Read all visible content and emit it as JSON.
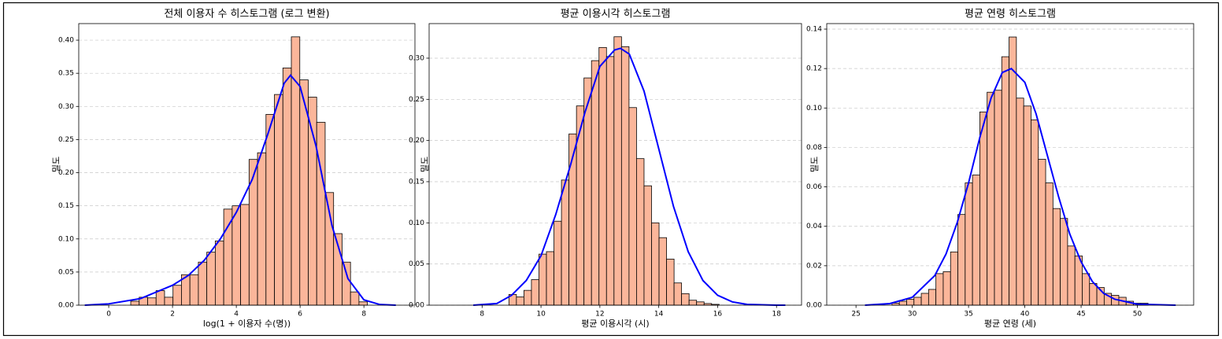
{
  "chart_data": [
    {
      "type": "histogram",
      "title": "전체 이용자 수 히스토그램 (로그 변환)",
      "xlabel": "log(1 + 이용자 수(명))",
      "ylabel": "밀도",
      "bins": [
        0.69,
        0.955,
        1.22,
        1.485,
        1.75,
        2.015,
        2.28,
        2.545,
        2.81,
        3.075,
        3.34,
        3.605,
        3.87,
        4.135,
        4.4,
        4.665,
        4.93,
        5.195,
        5.46,
        5.725,
        5.99,
        6.255,
        6.52,
        6.785,
        7.05,
        7.315,
        7.58,
        7.845,
        8.11
      ],
      "values": [
        0.006,
        0.012,
        0.011,
        0.022,
        0.012,
        0.03,
        0.046,
        0.046,
        0.065,
        0.08,
        0.097,
        0.145,
        0.15,
        0.152,
        0.22,
        0.23,
        0.288,
        0.318,
        0.358,
        0.405,
        0.34,
        0.314,
        0.276,
        0.17,
        0.108,
        0.065,
        0.02,
        0.005
      ],
      "color": "#fbb69a",
      "edgecolor": "#000000",
      "kde": {
        "color": "#0000ff",
        "x": [
          -0.75,
          0,
          1,
          2,
          2.5,
          3,
          3.5,
          4,
          4.5,
          5,
          5.5,
          5.7,
          6,
          6.5,
          7,
          7.5,
          8,
          8.5,
          9
        ],
        "values": [
          0,
          0.002,
          0.01,
          0.03,
          0.045,
          0.068,
          0.1,
          0.14,
          0.19,
          0.26,
          0.335,
          0.347,
          0.33,
          0.24,
          0.12,
          0.04,
          0.008,
          0.001,
          0
        ]
      },
      "xlim": [
        -0.94,
        9.6
      ],
      "ylim": [
        0,
        0.425
      ],
      "xticks": [
        0,
        2,
        4,
        6,
        8
      ],
      "yticks": [
        {
          "value": 0,
          "label": "0.00"
        },
        {
          "value": 0.05,
          "label": "0.05"
        },
        {
          "value": 0.1,
          "label": "0.10"
        },
        {
          "value": 0.15,
          "label": "0.15"
        },
        {
          "value": 0.2,
          "label": "0.20"
        },
        {
          "value": 0.25,
          "label": "0.25"
        },
        {
          "value": 0.3,
          "label": "0.30"
        },
        {
          "value": 0.35,
          "label": "0.35"
        },
        {
          "value": 0.4,
          "label": "0.40"
        }
      ],
      "grid": true
    },
    {
      "type": "histogram",
      "title": "평균 이용시각 히스토그램",
      "xlabel": "평균 이용시각 (시)",
      "ylabel": "밀도",
      "bins": [
        8.91,
        9.165,
        9.42,
        9.675,
        9.93,
        10.185,
        10.44,
        10.695,
        10.95,
        11.205,
        11.46,
        11.715,
        11.97,
        12.225,
        12.48,
        12.735,
        12.99,
        13.245,
        13.5,
        13.755,
        14.01,
        14.265,
        14.52,
        14.775,
        15.03,
        15.285,
        15.54,
        15.795,
        16.05
      ],
      "values": [
        0.013,
        0.01,
        0.018,
        0.031,
        0.062,
        0.065,
        0.102,
        0.152,
        0.208,
        0.242,
        0.276,
        0.297,
        0.313,
        0.302,
        0.326,
        0.314,
        0.24,
        0.178,
        0.145,
        0.1,
        0.082,
        0.056,
        0.027,
        0.014,
        0.006,
        0.004,
        0.002,
        0.001
      ],
      "color": "#fbb69a",
      "edgecolor": "#000000",
      "kde": {
        "color": "#0000ff",
        "x": [
          7.7,
          8.5,
          9,
          9.5,
          10,
          10.5,
          11,
          11.5,
          12,
          12.5,
          12.7,
          13,
          13.5,
          14,
          14.5,
          15,
          15.5,
          16,
          16.5,
          17,
          18,
          18.3
        ],
        "values": [
          0,
          0.002,
          0.012,
          0.03,
          0.06,
          0.11,
          0.17,
          0.235,
          0.29,
          0.31,
          0.312,
          0.305,
          0.26,
          0.19,
          0.12,
          0.065,
          0.03,
          0.012,
          0.004,
          0.001,
          0,
          0
        ]
      },
      "xlim": [
        6.2,
        18.85
      ],
      "ylim": [
        0,
        0.342
      ],
      "xticks": [
        8,
        10,
        12,
        14,
        16,
        18
      ],
      "yticks": [
        {
          "value": 0,
          "label": "0.00"
        },
        {
          "value": 0.05,
          "label": "0.05"
        },
        {
          "value": 0.1,
          "label": "0.10"
        },
        {
          "value": 0.15,
          "label": "0.15"
        },
        {
          "value": 0.2,
          "label": "0.20"
        },
        {
          "value": 0.25,
          "label": "0.25"
        },
        {
          "value": 0.3,
          "label": "0.30"
        }
      ],
      "grid": true
    },
    {
      "type": "histogram",
      "title": "평균 연령 히스토그램",
      "xlabel": "평균 연령 (세)",
      "ylabel": "밀도",
      "bins": [
        28.2,
        28.85,
        29.5,
        30.15,
        30.8,
        31.45,
        32.1,
        32.75,
        33.4,
        34.05,
        34.7,
        35.35,
        36.0,
        36.65,
        37.3,
        37.95,
        38.6,
        39.25,
        39.9,
        40.55,
        41.2,
        41.85,
        42.5,
        43.15,
        43.8,
        44.45,
        45.1,
        45.75,
        46.4,
        47.05,
        47.7,
        48.35,
        49.0,
        49.65,
        50.3,
        50.95
      ],
      "values": [
        0.001,
        0.002,
        0.003,
        0.004,
        0.006,
        0.008,
        0.016,
        0.017,
        0.027,
        0.046,
        0.062,
        0.066,
        0.098,
        0.108,
        0.109,
        0.126,
        0.136,
        0.105,
        0.101,
        0.094,
        0.074,
        0.062,
        0.049,
        0.044,
        0.03,
        0.025,
        0.016,
        0.011,
        0.009,
        0.006,
        0.005,
        0.004,
        0.002,
        0.001,
        0.001
      ],
      "color": "#fbb69a",
      "edgecolor": "#000000",
      "kde": {
        "color": "#0000ff",
        "x": [
          25.8,
          28,
          30,
          32,
          33,
          34,
          35,
          36,
          37,
          38,
          38.8,
          40,
          41,
          42,
          43,
          44,
          45,
          46,
          47,
          48,
          50,
          53.4
        ],
        "values": [
          0,
          0.0008,
          0.004,
          0.015,
          0.026,
          0.042,
          0.062,
          0.085,
          0.105,
          0.118,
          0.12,
          0.113,
          0.097,
          0.076,
          0.055,
          0.036,
          0.022,
          0.012,
          0.006,
          0.003,
          0.0005,
          0
        ]
      },
      "xlim": [
        22.4,
        55.0
      ],
      "ylim": [
        0,
        0.1428
      ],
      "xticks": [
        25,
        30,
        35,
        40,
        45,
        50
      ],
      "yticks": [
        {
          "value": 0,
          "label": "0.00"
        },
        {
          "value": 0.02,
          "label": "0.02"
        },
        {
          "value": 0.04,
          "label": "0.04"
        },
        {
          "value": 0.06,
          "label": "0.06"
        },
        {
          "value": 0.08,
          "label": "0.08"
        },
        {
          "value": 0.1,
          "label": "0.10"
        },
        {
          "value": 0.12,
          "label": "0.12"
        },
        {
          "value": 0.14,
          "label": "0.14"
        }
      ],
      "grid": true
    }
  ]
}
